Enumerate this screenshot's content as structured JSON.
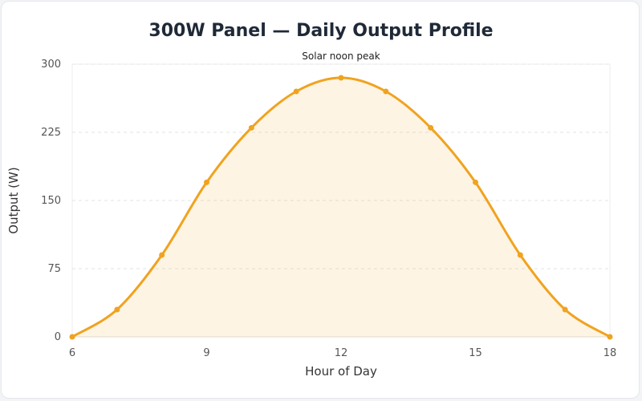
{
  "chart_data": {
    "type": "line",
    "title": "300W Panel — Daily Output Profile",
    "xlabel": "Hour of Day",
    "ylabel": "Output (W)",
    "x": [
      6,
      7,
      8,
      9,
      10,
      11,
      12,
      13,
      14,
      15,
      16,
      17,
      18
    ],
    "series": [
      {
        "values": [
          0,
          30,
          90,
          170,
          230,
          270,
          285,
          270,
          230,
          170,
          90,
          30,
          0
        ],
        "color": "#f0a31f"
      }
    ],
    "xlim": [
      6,
      18
    ],
    "ylim": [
      0,
      300
    ],
    "xticks": [
      6,
      9,
      12,
      15,
      18
    ],
    "yticks": [
      0,
      75,
      150,
      225,
      300
    ],
    "grid": true,
    "fill": true,
    "smooth": true,
    "annotations": [
      {
        "text": "Solar noon peak",
        "x": 12,
        "y": 300
      }
    ]
  }
}
